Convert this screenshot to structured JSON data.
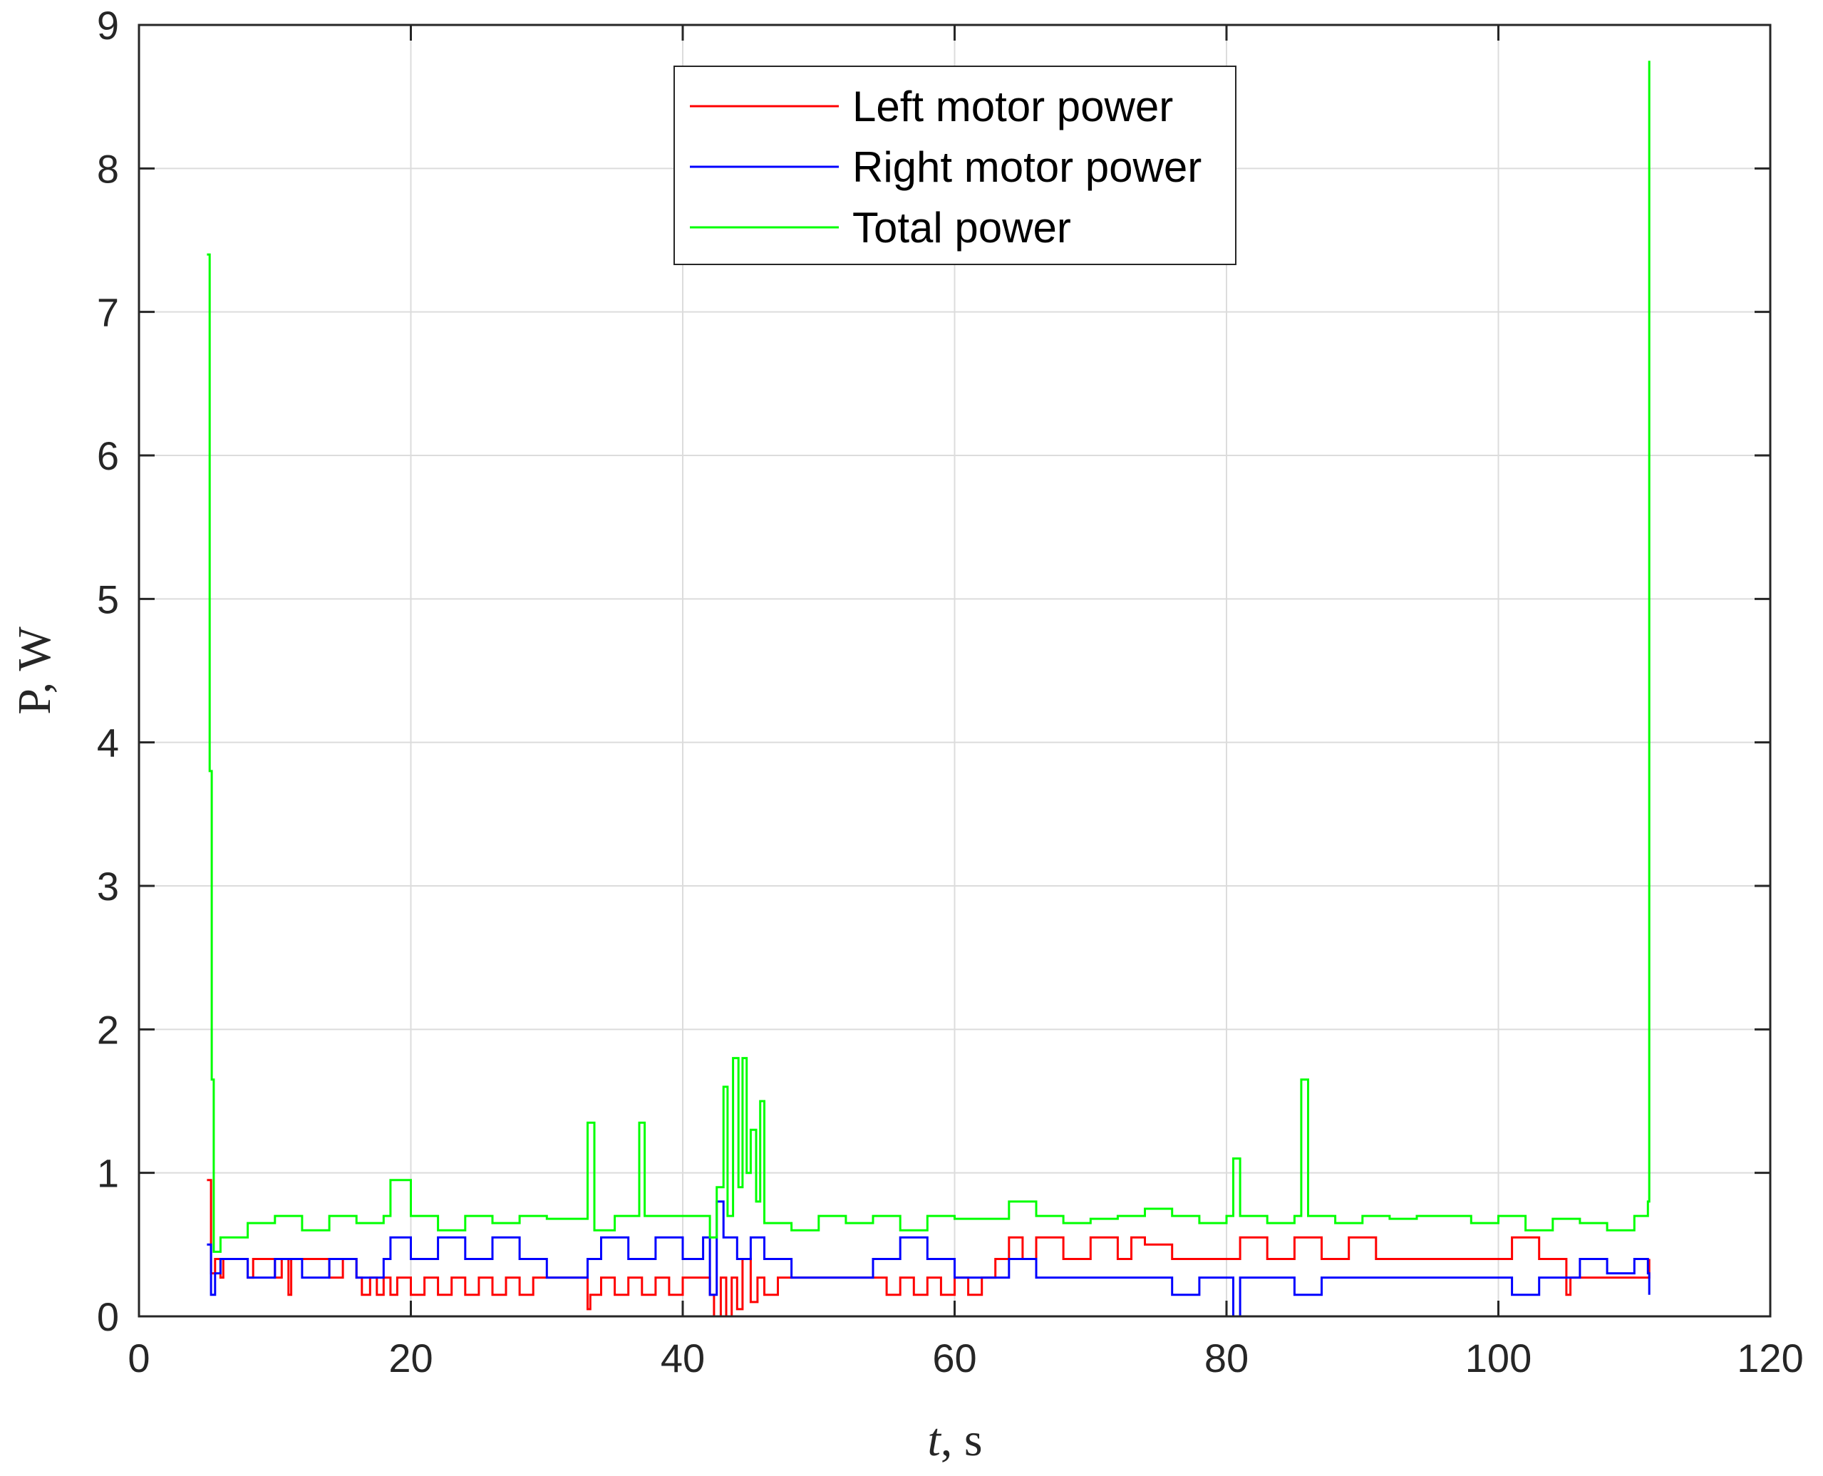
{
  "chart_data": {
    "type": "line",
    "title": "",
    "xlabel_var": "t",
    "xlabel_unit": ", s",
    "ylabel": "P, W",
    "xlim": [
      0,
      120
    ],
    "ylim": [
      0,
      9
    ],
    "x_ticks": [
      0,
      20,
      40,
      60,
      80,
      100,
      120
    ],
    "y_ticks": [
      0,
      1,
      2,
      3,
      4,
      5,
      6,
      7,
      8,
      9
    ],
    "x_tick_labels": [
      "0",
      "20",
      "40",
      "60",
      "80",
      "100",
      "120"
    ],
    "y_tick_labels": [
      "0",
      "1",
      "2",
      "3",
      "4",
      "5",
      "6",
      "7",
      "8",
      "9"
    ],
    "grid": true,
    "legend_position": "top-center",
    "series": [
      {
        "name": "Left motor power",
        "color": "#ff0000",
        "points": [
          [
            5.0,
            0.95
          ],
          [
            5.3,
            0.3
          ],
          [
            5.6,
            0.4
          ],
          [
            6,
            0.27
          ],
          [
            6.2,
            0.4
          ],
          [
            8,
            0.27
          ],
          [
            8.4,
            0.4
          ],
          [
            10,
            0.27
          ],
          [
            10.5,
            0.4
          ],
          [
            11,
            0.15
          ],
          [
            11.2,
            0.4
          ],
          [
            14,
            0.27
          ],
          [
            15,
            0.4
          ],
          [
            16,
            0.27
          ],
          [
            16.4,
            0.15
          ],
          [
            17,
            0.27
          ],
          [
            17.5,
            0.15
          ],
          [
            18,
            0.27
          ],
          [
            18.5,
            0.15
          ],
          [
            19,
            0.27
          ],
          [
            20,
            0.15
          ],
          [
            21,
            0.27
          ],
          [
            22,
            0.15
          ],
          [
            23,
            0.27
          ],
          [
            24,
            0.15
          ],
          [
            25,
            0.27
          ],
          [
            26,
            0.15
          ],
          [
            27,
            0.27
          ],
          [
            28,
            0.15
          ],
          [
            29,
            0.27
          ],
          [
            30,
            0.27
          ],
          [
            32,
            0.27
          ],
          [
            33,
            0.05
          ],
          [
            33.2,
            0.15
          ],
          [
            34,
            0.27
          ],
          [
            35,
            0.15
          ],
          [
            36,
            0.27
          ],
          [
            37,
            0.15
          ],
          [
            38,
            0.27
          ],
          [
            39,
            0.15
          ],
          [
            40,
            0.27
          ],
          [
            41,
            0.27
          ],
          [
            42,
            0.15
          ],
          [
            42.3,
            0.0
          ],
          [
            42.8,
            0.27
          ],
          [
            43.2,
            0.0
          ],
          [
            43.6,
            0.27
          ],
          [
            44,
            0.05
          ],
          [
            44.4,
            0.4
          ],
          [
            45,
            0.1
          ],
          [
            45.5,
            0.27
          ],
          [
            46,
            0.15
          ],
          [
            47,
            0.27
          ],
          [
            50,
            0.27
          ],
          [
            53,
            0.27
          ],
          [
            55,
            0.15
          ],
          [
            56,
            0.27
          ],
          [
            57,
            0.15
          ],
          [
            58,
            0.27
          ],
          [
            59,
            0.15
          ],
          [
            60,
            0.27
          ],
          [
            61,
            0.15
          ],
          [
            62,
            0.27
          ],
          [
            63,
            0.4
          ],
          [
            64,
            0.55
          ],
          [
            65,
            0.4
          ],
          [
            66,
            0.55
          ],
          [
            68,
            0.4
          ],
          [
            70,
            0.55
          ],
          [
            72,
            0.4
          ],
          [
            73,
            0.55
          ],
          [
            74,
            0.5
          ],
          [
            76,
            0.4
          ],
          [
            78,
            0.4
          ],
          [
            80,
            0.4
          ],
          [
            81,
            0.55
          ],
          [
            83,
            0.4
          ],
          [
            85,
            0.55
          ],
          [
            87,
            0.4
          ],
          [
            89,
            0.55
          ],
          [
            91,
            0.4
          ],
          [
            93,
            0.4
          ],
          [
            95,
            0.4
          ],
          [
            97,
            0.4
          ],
          [
            99,
            0.4
          ],
          [
            101,
            0.55
          ],
          [
            103,
            0.4
          ],
          [
            104.5,
            0.4
          ],
          [
            105,
            0.15
          ],
          [
            105.3,
            0.27
          ],
          [
            108,
            0.27
          ],
          [
            110,
            0.27
          ],
          [
            111,
            0.27
          ],
          [
            111.1,
            0.4
          ]
        ]
      },
      {
        "name": "Right motor power",
        "color": "#0000ff",
        "points": [
          [
            5.0,
            0.5
          ],
          [
            5.3,
            0.15
          ],
          [
            5.6,
            0.3
          ],
          [
            6,
            0.4
          ],
          [
            8,
            0.27
          ],
          [
            10,
            0.4
          ],
          [
            12,
            0.27
          ],
          [
            14,
            0.4
          ],
          [
            16,
            0.27
          ],
          [
            18,
            0.4
          ],
          [
            18.5,
            0.55
          ],
          [
            20,
            0.4
          ],
          [
            22,
            0.55
          ],
          [
            24,
            0.4
          ],
          [
            26,
            0.55
          ],
          [
            28,
            0.4
          ],
          [
            30,
            0.27
          ],
          [
            32,
            0.27
          ],
          [
            33,
            0.4
          ],
          [
            34,
            0.55
          ],
          [
            36,
            0.4
          ],
          [
            38,
            0.55
          ],
          [
            40,
            0.4
          ],
          [
            41.5,
            0.55
          ],
          [
            42,
            0.15
          ],
          [
            42.5,
            0.8
          ],
          [
            43,
            0.55
          ],
          [
            44,
            0.4
          ],
          [
            45,
            0.55
          ],
          [
            46,
            0.4
          ],
          [
            48,
            0.27
          ],
          [
            50,
            0.27
          ],
          [
            52,
            0.27
          ],
          [
            54,
            0.4
          ],
          [
            56,
            0.55
          ],
          [
            58,
            0.4
          ],
          [
            60,
            0.27
          ],
          [
            62,
            0.27
          ],
          [
            64,
            0.4
          ],
          [
            66,
            0.27
          ],
          [
            68,
            0.27
          ],
          [
            70,
            0.27
          ],
          [
            72,
            0.27
          ],
          [
            74,
            0.27
          ],
          [
            76,
            0.15
          ],
          [
            78,
            0.27
          ],
          [
            80,
            0.27
          ],
          [
            80.5,
            0.0
          ],
          [
            81,
            0.27
          ],
          [
            83,
            0.27
          ],
          [
            85,
            0.15
          ],
          [
            87,
            0.27
          ],
          [
            89,
            0.27
          ],
          [
            91,
            0.27
          ],
          [
            93,
            0.27
          ],
          [
            95,
            0.27
          ],
          [
            97,
            0.27
          ],
          [
            99,
            0.27
          ],
          [
            101,
            0.15
          ],
          [
            103,
            0.27
          ],
          [
            104,
            0.27
          ],
          [
            106,
            0.4
          ],
          [
            108,
            0.3
          ],
          [
            110,
            0.4
          ],
          [
            111,
            0.3
          ],
          [
            111.1,
            0.15
          ]
        ]
      },
      {
        "name": "Total power",
        "color": "#00ff00",
        "points": [
          [
            5.0,
            7.4
          ],
          [
            5.2,
            3.8
          ],
          [
            5.35,
            1.65
          ],
          [
            5.5,
            0.45
          ],
          [
            6,
            0.55
          ],
          [
            8,
            0.65
          ],
          [
            10,
            0.7
          ],
          [
            12,
            0.6
          ],
          [
            14,
            0.7
          ],
          [
            16,
            0.65
          ],
          [
            18,
            0.7
          ],
          [
            18.5,
            0.95
          ],
          [
            20,
            0.7
          ],
          [
            22,
            0.6
          ],
          [
            24,
            0.7
          ],
          [
            26,
            0.65
          ],
          [
            28,
            0.7
          ],
          [
            30,
            0.68
          ],
          [
            32,
            0.68
          ],
          [
            33,
            1.35
          ],
          [
            33.5,
            0.6
          ],
          [
            35,
            0.7
          ],
          [
            36.8,
            1.35
          ],
          [
            37.2,
            0.7
          ],
          [
            39,
            0.7
          ],
          [
            41,
            0.7
          ],
          [
            42,
            0.55
          ],
          [
            42.5,
            0.9
          ],
          [
            43,
            1.6
          ],
          [
            43.3,
            0.7
          ],
          [
            43.7,
            1.8
          ],
          [
            44.1,
            0.9
          ],
          [
            44.4,
            1.8
          ],
          [
            44.7,
            1.0
          ],
          [
            45,
            1.3
          ],
          [
            45.4,
            0.8
          ],
          [
            45.7,
            1.5
          ],
          [
            46,
            0.65
          ],
          [
            48,
            0.6
          ],
          [
            50,
            0.7
          ],
          [
            52,
            0.65
          ],
          [
            54,
            0.7
          ],
          [
            56,
            0.6
          ],
          [
            58,
            0.7
          ],
          [
            60,
            0.68
          ],
          [
            62,
            0.68
          ],
          [
            64,
            0.8
          ],
          [
            66,
            0.7
          ],
          [
            68,
            0.65
          ],
          [
            70,
            0.68
          ],
          [
            72,
            0.7
          ],
          [
            74,
            0.75
          ],
          [
            76,
            0.7
          ],
          [
            78,
            0.65
          ],
          [
            80,
            0.7
          ],
          [
            80.5,
            1.1
          ],
          [
            81,
            0.7
          ],
          [
            83,
            0.65
          ],
          [
            85,
            0.7
          ],
          [
            85.5,
            1.65
          ],
          [
            86,
            0.7
          ],
          [
            88,
            0.65
          ],
          [
            90,
            0.7
          ],
          [
            92,
            0.68
          ],
          [
            94,
            0.7
          ],
          [
            96,
            0.7
          ],
          [
            98,
            0.65
          ],
          [
            100,
            0.7
          ],
          [
            102,
            0.6
          ],
          [
            104,
            0.68
          ],
          [
            106,
            0.65
          ],
          [
            108,
            0.6
          ],
          [
            110,
            0.7
          ],
          [
            111,
            0.8
          ],
          [
            111.1,
            8.75
          ]
        ]
      }
    ]
  }
}
